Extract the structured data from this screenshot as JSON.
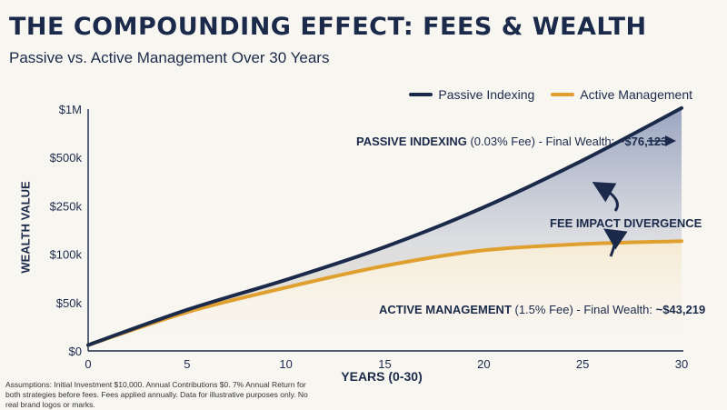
{
  "header": {
    "title": "THE COMPOUNDING EFFECT: FEES & WEALTH",
    "subtitle": "Passive vs. Active Management Over 30 Years"
  },
  "legend": [
    {
      "label": "Passive Indexing",
      "color": "#1b2a4a"
    },
    {
      "label": "Active Management",
      "color": "#e0a030"
    }
  ],
  "annotations": {
    "passive_bold": "PASSIVE INDEXING",
    "passive_rest": " (0.03% Fee) - Final Wealth: ",
    "passive_value": "~$76,123",
    "active_bold": "ACTIVE MANAGEMENT",
    "active_rest": " (1.5% Fee) - Final Wealth: ",
    "active_value": "~$43,219",
    "divergence": "FEE IMPACT DIVERGENCE"
  },
  "footnote": "Assumptions: Initial Investment $10,000. Annual Contributions $0. 7% Annual Return for both strategies before fees. Fees applied annually. Data for illustrative purposes only. No real brand logos or marks.",
  "chart_data": {
    "type": "area",
    "xlabel": "YEARS (0-30)",
    "ylabel": "WEALTH VALUE",
    "x_ticks": [
      0,
      5,
      10,
      15,
      20,
      25,
      30
    ],
    "y_tick_labels": [
      "$0",
      "$50k",
      "$100k",
      "$250k",
      "$500k",
      "$1M"
    ],
    "xlim": [
      0,
      30
    ],
    "grid": false,
    "legend_position": "top-right",
    "series": [
      {
        "name": "Passive Indexing",
        "color": "#1b2a4a",
        "x": [
          0,
          5,
          10,
          15,
          20,
          25,
          30
        ],
        "y_level": [
          0.12,
          0.85,
          1.47,
          2.15,
          2.97,
          3.94,
          5.02
        ]
      },
      {
        "name": "Active Management",
        "color": "#e0a030",
        "x": [
          0,
          5,
          10,
          15,
          20,
          25,
          30
        ],
        "y_level": [
          0.12,
          0.8,
          1.31,
          1.76,
          2.08,
          2.21,
          2.27
        ]
      }
    ]
  }
}
